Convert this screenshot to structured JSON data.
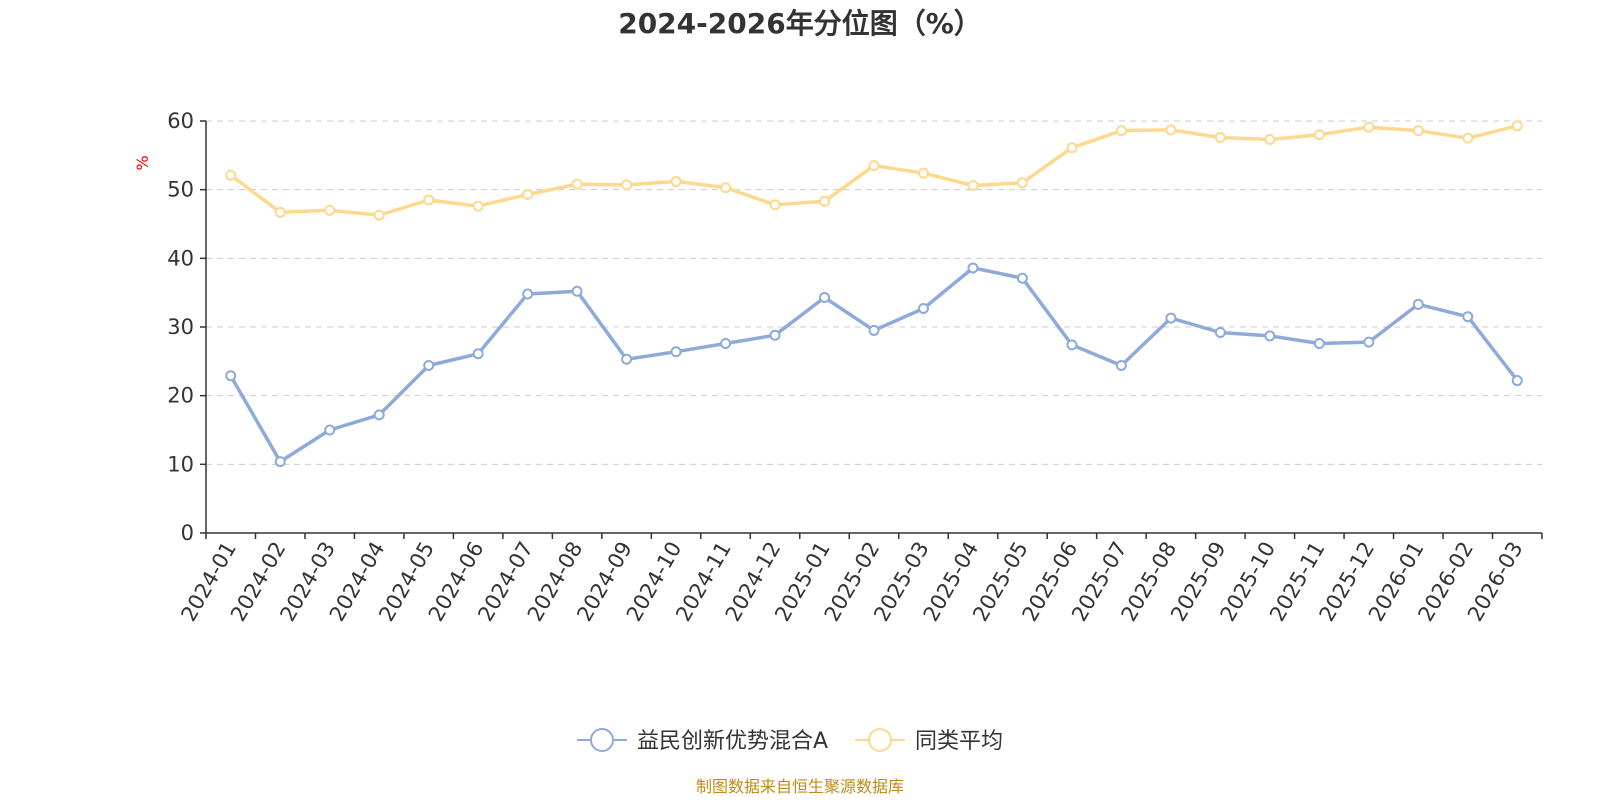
{
  "chart_data": {
    "type": "line",
    "title": "2024-2026年分位图（%）",
    "ylabel": "%",
    "xlabel": "",
    "ylim": [
      0,
      60
    ],
    "yticks": [
      0,
      10,
      20,
      30,
      40,
      50,
      60
    ],
    "grid": true,
    "legend_position": "bottom-center",
    "categories": [
      "2024-01",
      "2024-02",
      "2024-03",
      "2024-04",
      "2024-05",
      "2024-06",
      "2024-07",
      "2024-08",
      "2024-09",
      "2024-10",
      "2024-11",
      "2024-12",
      "2025-01",
      "2025-02",
      "2025-03",
      "2025-04",
      "2025-05",
      "2025-06",
      "2025-07",
      "2025-08",
      "2025-09",
      "2025-10",
      "2025-11",
      "2025-12",
      "2026-01",
      "2026-02",
      "2026-03"
    ],
    "series": [
      {
        "name": "益民创新优势混合A",
        "color": "#8eaadb",
        "values": [
          22.9,
          10.4,
          15.0,
          17.2,
          24.4,
          26.1,
          34.8,
          35.2,
          25.3,
          26.4,
          27.6,
          28.8,
          34.3,
          29.5,
          32.7,
          38.6,
          37.1,
          27.4,
          24.4,
          31.3,
          29.2,
          28.7,
          27.6,
          27.8,
          33.3,
          31.5,
          22.2
        ]
      },
      {
        "name": "同类平均",
        "color": "#fcd98f",
        "values": [
          52.1,
          46.7,
          47.0,
          46.3,
          48.5,
          47.6,
          49.3,
          50.8,
          50.7,
          51.2,
          50.3,
          47.8,
          48.3,
          53.5,
          52.4,
          50.6,
          51.0,
          56.1,
          58.6,
          58.7,
          57.6,
          57.3,
          58.0,
          59.1,
          58.6,
          57.5,
          59.3
        ]
      }
    ],
    "source_text": "制图数据来自恒生聚源数据库",
    "source_color": "#c28b19",
    "unit_color": "#ff0000",
    "grid_color": "#cccccc",
    "axis_color": "#333333"
  }
}
